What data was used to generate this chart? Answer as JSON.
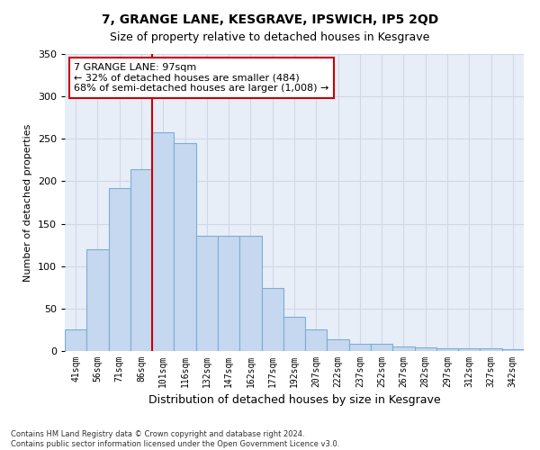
{
  "title1": "7, GRANGE LANE, KESGRAVE, IPSWICH, IP5 2QD",
  "title2": "Size of property relative to detached houses in Kesgrave",
  "xlabel": "Distribution of detached houses by size in Kesgrave",
  "ylabel": "Number of detached properties",
  "categories": [
    "41sqm",
    "56sqm",
    "71sqm",
    "86sqm",
    "101sqm",
    "116sqm",
    "132sqm",
    "147sqm",
    "162sqm",
    "177sqm",
    "192sqm",
    "207sqm",
    "222sqm",
    "237sqm",
    "252sqm",
    "267sqm",
    "282sqm",
    "297sqm",
    "312sqm",
    "327sqm",
    "342sqm"
  ],
  "values": [
    25,
    120,
    192,
    214,
    258,
    245,
    136,
    136,
    136,
    74,
    40,
    25,
    14,
    9,
    8,
    5,
    4,
    3,
    3,
    3,
    2
  ],
  "bar_color": "#c5d8f0",
  "bar_edge_color": "#7baed4",
  "vline_x": 3.5,
  "vline_color": "#cc0000",
  "annotation_text": "7 GRANGE LANE: 97sqm\n← 32% of detached houses are smaller (484)\n68% of semi-detached houses are larger (1,008) →",
  "annotation_box_color": "#ffffff",
  "annotation_box_edge": "#cc0000",
  "ylim": [
    0,
    350
  ],
  "yticks": [
    0,
    50,
    100,
    150,
    200,
    250,
    300,
    350
  ],
  "footnote": "Contains HM Land Registry data © Crown copyright and database right 2024.\nContains public sector information licensed under the Open Government Licence v3.0.",
  "bg_color": "#e8eef8",
  "fig_bg_color": "#ffffff",
  "grid_color": "#d0d8e8"
}
